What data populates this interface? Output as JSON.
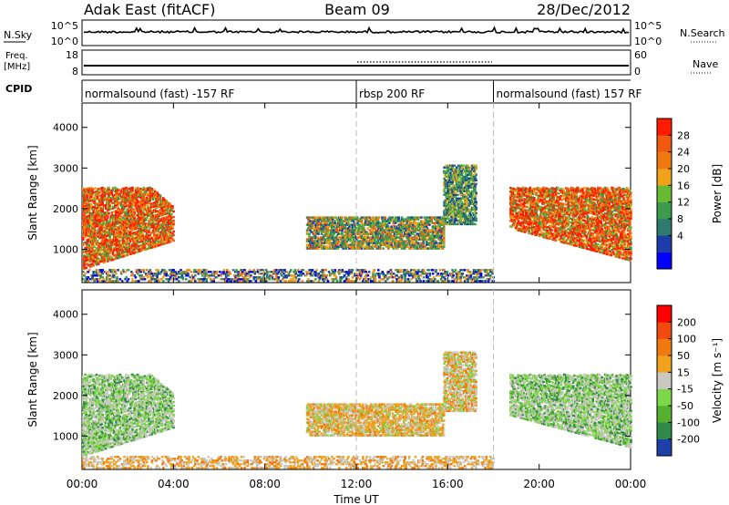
{
  "header": {
    "station": "Adak East (fitACF)",
    "beam": "Beam 09",
    "date": "28/Dec/2012"
  },
  "strips": {
    "nsky": {
      "label": "N.Sky",
      "tick_top": "10^5",
      "tick_bottom": "10^0"
    },
    "nsearch": {
      "label": "N.Search",
      "tick_top": "10^5",
      "tick_bottom": "10^0"
    },
    "freq": {
      "label_line1": "Freq.",
      "label_line2": "[MHz]",
      "tick_top": "18",
      "tick_bottom": "8"
    },
    "nave": {
      "label": "Nave",
      "tick_top": "60",
      "tick_bottom": "0"
    },
    "cpid": {
      "label": "CPID"
    }
  },
  "cpid_segments": [
    {
      "label": "normalsound (fast) -157 RF",
      "start_hour": 0
    },
    {
      "label": "rbsp 200 RF",
      "start_hour": 12
    },
    {
      "label": "normalsound (fast) 157 RF",
      "start_hour": 18
    }
  ],
  "chart_data": [
    {
      "type": "heatmap",
      "ylabel": "Slant Range [km]",
      "xlabel": "Time UT",
      "x_ticks": [
        "00:00",
        "04:00",
        "08:00",
        "12:00",
        "16:00",
        "20:00",
        "00:00"
      ],
      "x_tick_hours": [
        0,
        4,
        8,
        12,
        16,
        20,
        24
      ],
      "y_ticks": [
        1000,
        2000,
        3000,
        4000
      ],
      "xlim": [
        0,
        24
      ],
      "ylim": [
        180,
        4600
      ],
      "dashed_hours": [
        12,
        18
      ],
      "colorbar": {
        "label": "Power [dB]",
        "ticks": [
          "28",
          "24",
          "20",
          "16",
          "12",
          "8",
          "4"
        ],
        "colors": [
          "#0000ff",
          "#1e3ca8",
          "#2f7a6e",
          "#3c9a4c",
          "#66bb33",
          "#f0a21c",
          "#f07a12",
          "#f05a10",
          "#ff1a00"
        ]
      }
    },
    {
      "type": "heatmap",
      "ylabel": "Slant Range [km]",
      "xlabel": "Time UT",
      "x_ticks": [
        "00:00",
        "04:00",
        "08:00",
        "12:00",
        "16:00",
        "20:00",
        "00:00"
      ],
      "x_tick_hours": [
        0,
        4,
        8,
        12,
        16,
        20,
        24
      ],
      "y_ticks": [
        1000,
        2000,
        3000,
        4000
      ],
      "xlim": [
        0,
        24
      ],
      "ylim": [
        180,
        4600
      ],
      "dashed_hours": [
        12,
        18
      ],
      "colorbar": {
        "label": "Velocity [m s⁻¹]",
        "ticks": [
          "200",
          "100",
          "50",
          "15",
          "-15",
          "-50",
          "-100",
          "-200"
        ],
        "colors": [
          "#1f3fa8",
          "#2f8a4a",
          "#55b030",
          "#7ed64a",
          "#c8c8c0",
          "#f0a21c",
          "#f07a12",
          "#f04a10",
          "#ff0000"
        ]
      }
    }
  ],
  "echo_regions": [
    {
      "name": "dawn-band",
      "t0": 0.0,
      "t1": 4.0,
      "r0": 500,
      "r1": 2500
    },
    {
      "name": "midday-band",
      "t0": 9.8,
      "t1": 15.8,
      "r0": 1000,
      "r1": 1800
    },
    {
      "name": "afternoon-patch",
      "t0": 15.8,
      "t1": 17.2,
      "r0": 1600,
      "r1": 3050
    },
    {
      "name": "evening-band",
      "t0": 18.7,
      "t1": 24.0,
      "r0": 700,
      "r1": 2500
    },
    {
      "name": "ground-scatter",
      "t0": 0.0,
      "t1": 18.0,
      "r0": 200,
      "r1": 480
    }
  ]
}
